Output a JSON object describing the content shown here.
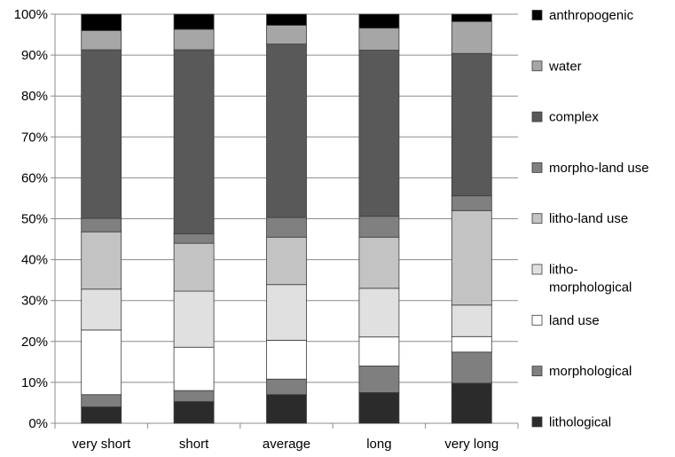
{
  "chart_data": {
    "type": "bar",
    "stacked": "percent",
    "categories": [
      "very short",
      "short",
      "average",
      "long",
      "very long"
    ],
    "ylim": [
      0,
      100
    ],
    "yticks": [
      "0%",
      "10%",
      "20%",
      "30%",
      "40%",
      "50%",
      "60%",
      "70%",
      "80%",
      "90%",
      "100%"
    ],
    "grid": true,
    "legend_position": "right",
    "series": [
      {
        "name": "lithological",
        "color": "#2b2b2b",
        "values": [
          4.0,
          5.3,
          7.0,
          7.5,
          9.8
        ]
      },
      {
        "name": "morphological",
        "color": "#7f7f7f",
        "values": [
          3.0,
          2.7,
          3.8,
          6.5,
          7.6
        ]
      },
      {
        "name": "land use",
        "color": "#ffffff",
        "values": [
          15.8,
          10.6,
          9.5,
          7.1,
          3.8
        ]
      },
      {
        "name": "litho-morphological",
        "color": "#e0e0e0",
        "values": [
          10.0,
          13.7,
          13.6,
          11.9,
          7.7
        ]
      },
      {
        "name": "litho-land use",
        "color": "#c3c3c3",
        "values": [
          14.0,
          11.7,
          11.6,
          12.5,
          23.1
        ]
      },
      {
        "name": "morpho-land use",
        "color": "#808080",
        "values": [
          3.3,
          2.3,
          4.8,
          5.1,
          3.6
        ]
      },
      {
        "name": "complex",
        "color": "#595959",
        "values": [
          41.2,
          45.0,
          42.4,
          40.6,
          34.8
        ]
      },
      {
        "name": "water",
        "color": "#a6a6a6",
        "values": [
          4.7,
          5.0,
          4.6,
          5.4,
          7.8
        ]
      },
      {
        "name": "anthropogenic",
        "color": "#000000",
        "values": [
          4.0,
          3.7,
          2.7,
          3.4,
          1.8
        ]
      }
    ],
    "legend": [
      {
        "label_lines": [
          "anthropogenic"
        ],
        "series": 8
      },
      {
        "label_lines": [
          "water"
        ],
        "series": 7
      },
      {
        "label_lines": [
          "complex"
        ],
        "series": 6
      },
      {
        "label_lines": [
          "morpho-land use"
        ],
        "series": 5
      },
      {
        "label_lines": [
          "litho-land use"
        ],
        "series": 4
      },
      {
        "label_lines": [
          "litho-",
          "morphological"
        ],
        "series": 3
      },
      {
        "label_lines": [
          "land use"
        ],
        "series": 2
      },
      {
        "label_lines": [
          "morphological"
        ],
        "series": 1
      },
      {
        "label_lines": [
          "lithological"
        ],
        "series": 0
      }
    ]
  }
}
